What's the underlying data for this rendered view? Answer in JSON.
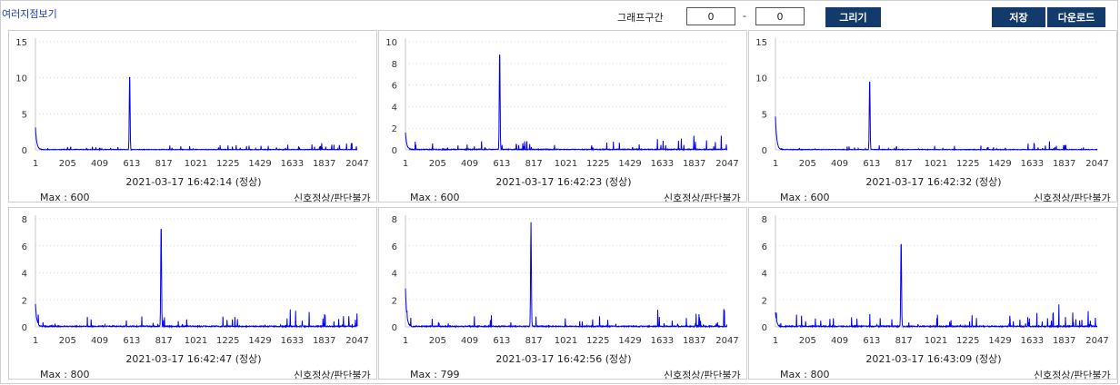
{
  "header": {
    "title": "여러지점보기",
    "range_label": "그래프구간",
    "range_start": "0",
    "range_dash": "-",
    "range_end": "0",
    "draw_label": "그리기",
    "save_label": "저장",
    "download_label": "다운로드"
  },
  "colors": {
    "line": "#0000ee",
    "button": "#123a6b",
    "grid": "#d8d8d8"
  },
  "panels": [
    {
      "timestamp": "2021-03-17 16:42:14 (정상)",
      "max_label": "Max : 600",
      "status": "신호정상/판단불가"
    },
    {
      "timestamp": "2021-03-17 16:42:23 (정상)",
      "max_label": "Max : 600",
      "status": "신호정상/판단불가"
    },
    {
      "timestamp": "2021-03-17 16:42:32 (정상)",
      "max_label": "Max : 600",
      "status": "신호정상/판단불가"
    },
    {
      "timestamp": "2021-03-17 16:42:47 (정상)",
      "max_label": "Max : 800",
      "status": "신호정상/판단불가"
    },
    {
      "timestamp": "2021-03-17 16:42:56 (정상)",
      "max_label": "Max : 799",
      "status": "신호정상/판단불가"
    },
    {
      "timestamp": "2021-03-17 16:43:09 (정상)",
      "max_label": "Max : 800",
      "status": "신호정상/판단불가"
    }
  ],
  "chart_data": [
    {
      "type": "line",
      "xticks": [
        1,
        205,
        409,
        613,
        817,
        1021,
        1225,
        1429,
        1633,
        1837,
        2047
      ],
      "xlim": [
        1,
        2047
      ],
      "ylim": [
        0,
        15
      ],
      "yticks": [
        0,
        5,
        10,
        15
      ],
      "grid": true,
      "peak": {
        "x": 600,
        "y": 10.8
      },
      "noise": 0.6,
      "start": 3.5,
      "seed": 11
    },
    {
      "type": "line",
      "xticks": [
        1,
        205,
        409,
        613,
        817,
        1021,
        1225,
        1429,
        1633,
        1837,
        2047
      ],
      "xlim": [
        1,
        2047
      ],
      "ylim": [
        0,
        10
      ],
      "yticks": [
        0,
        2,
        4,
        6,
        8,
        10
      ],
      "grid": true,
      "peak": {
        "x": 600,
        "y": 9.5
      },
      "noise": 0.8,
      "start": 1.8,
      "seed": 23
    },
    {
      "type": "line",
      "xticks": [
        1,
        205,
        409,
        613,
        817,
        1021,
        1225,
        1429,
        1633,
        1837,
        2047
      ],
      "xlim": [
        1,
        2047
      ],
      "ylim": [
        0,
        15
      ],
      "yticks": [
        0,
        5,
        10,
        15
      ],
      "grid": true,
      "peak": {
        "x": 600,
        "y": 10.2
      },
      "noise": 0.7,
      "start": 5.2,
      "seed": 37
    },
    {
      "type": "line",
      "xticks": [
        1,
        205,
        409,
        613,
        817,
        1021,
        1225,
        1429,
        1633,
        1837,
        2047
      ],
      "xlim": [
        1,
        2047
      ],
      "ylim": [
        0,
        8
      ],
      "yticks": [
        0,
        2,
        4,
        6,
        8
      ],
      "grid": true,
      "peak": {
        "x": 800,
        "y": 7.8
      },
      "noise": 0.8,
      "start": 1.9,
      "seed": 41
    },
    {
      "type": "line",
      "xticks": [
        1,
        205,
        409,
        613,
        817,
        1021,
        1225,
        1429,
        1633,
        1837,
        2047
      ],
      "xlim": [
        1,
        2047
      ],
      "ylim": [
        0,
        8
      ],
      "yticks": [
        0,
        2,
        4,
        6,
        8
      ],
      "grid": true,
      "peak": {
        "x": 799,
        "y": 7.7
      },
      "noise": 0.8,
      "start": 3.2,
      "seed": 53
    },
    {
      "type": "line",
      "xticks": [
        1,
        205,
        409,
        613,
        817,
        1021,
        1225,
        1429,
        1633,
        1837,
        2047
      ],
      "xlim": [
        1,
        2047
      ],
      "ylim": [
        0,
        8
      ],
      "yticks": [
        0,
        2,
        4,
        6,
        8
      ],
      "grid": true,
      "peak": {
        "x": 800,
        "y": 6.6
      },
      "noise": 0.9,
      "start": 1.2,
      "seed": 67
    }
  ]
}
